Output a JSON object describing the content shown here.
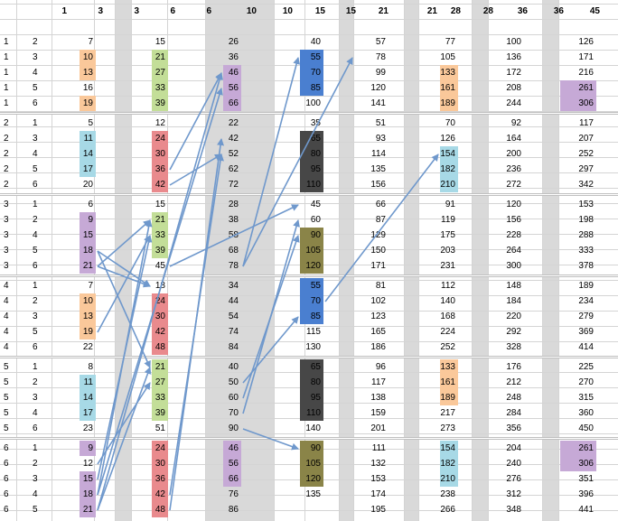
{
  "colors": {
    "orange": "#fac89a",
    "green": "#c3de98",
    "purple": "#c6a9d6",
    "teal": "#a7d9e6",
    "red": "#e98a8d",
    "blue": "#4a7fd0",
    "dark": "#474747",
    "olive": "#8a8448",
    "gray_band": "#d9d9d9",
    "arrow": "#6f98cc"
  },
  "header": [
    "1",
    "3",
    "3",
    "6",
    "6",
    "10",
    "10",
    "15",
    "15",
    "21",
    "21",
    "28",
    "28",
    "36",
    "36",
    "45"
  ],
  "rows": [
    {
      "a": "1",
      "b": "2",
      "c": [
        [
          "7",
          ""
        ],
        [
          "15",
          ""
        ],
        [
          "26",
          ""
        ],
        [
          "40",
          ""
        ],
        [
          "57",
          ""
        ],
        [
          "77",
          ""
        ],
        [
          "100",
          ""
        ],
        [
          "126",
          ""
        ]
      ]
    },
    {
      "a": "1",
      "b": "3",
      "c": [
        [
          "10",
          "orange"
        ],
        [
          "21",
          "green"
        ],
        [
          "36",
          ""
        ],
        [
          "55",
          "blue"
        ],
        [
          "78",
          ""
        ],
        [
          "105",
          ""
        ],
        [
          "136",
          ""
        ],
        [
          "171",
          ""
        ]
      ]
    },
    {
      "a": "1",
      "b": "4",
      "c": [
        [
          "13",
          "orange"
        ],
        [
          "27",
          "green"
        ],
        [
          "46",
          "purple"
        ],
        [
          "70",
          "blue"
        ],
        [
          "99",
          ""
        ],
        [
          "133",
          "orange"
        ],
        [
          "172",
          ""
        ],
        [
          "216",
          ""
        ]
      ]
    },
    {
      "a": "1",
      "b": "5",
      "c": [
        [
          "16",
          ""
        ],
        [
          "33",
          "green"
        ],
        [
          "56",
          "purple"
        ],
        [
          "85",
          "blue"
        ],
        [
          "120",
          ""
        ],
        [
          "161",
          "orange"
        ],
        [
          "208",
          ""
        ],
        [
          "261",
          "purple"
        ]
      ]
    },
    {
      "a": "1",
      "b": "6",
      "c": [
        [
          "19",
          "orange"
        ],
        [
          "39",
          "green"
        ],
        [
          "66",
          "purple"
        ],
        [
          "100",
          ""
        ],
        [
          "141",
          ""
        ],
        [
          "189",
          "orange"
        ],
        [
          "244",
          ""
        ],
        [
          "306",
          "purple"
        ]
      ]
    },
    {
      "a": "2",
      "b": "1",
      "c": [
        [
          "5",
          ""
        ],
        [
          "12",
          ""
        ],
        [
          "22",
          ""
        ],
        [
          "35",
          ""
        ],
        [
          "51",
          ""
        ],
        [
          "70",
          ""
        ],
        [
          "92",
          ""
        ],
        [
          "117",
          ""
        ]
      ]
    },
    {
      "a": "2",
      "b": "3",
      "c": [
        [
          "11",
          "teal"
        ],
        [
          "24",
          "red"
        ],
        [
          "42",
          ""
        ],
        [
          "65",
          "dark"
        ],
        [
          "93",
          ""
        ],
        [
          "126",
          ""
        ],
        [
          "164",
          ""
        ],
        [
          "207",
          ""
        ]
      ]
    },
    {
      "a": "2",
      "b": "4",
      "c": [
        [
          "14",
          "teal"
        ],
        [
          "30",
          "red"
        ],
        [
          "52",
          ""
        ],
        [
          "80",
          "dark"
        ],
        [
          "114",
          ""
        ],
        [
          "154",
          "teal"
        ],
        [
          "200",
          ""
        ],
        [
          "252",
          ""
        ]
      ]
    },
    {
      "a": "2",
      "b": "5",
      "c": [
        [
          "17",
          "teal"
        ],
        [
          "36",
          "red"
        ],
        [
          "62",
          ""
        ],
        [
          "95",
          "dark"
        ],
        [
          "135",
          ""
        ],
        [
          "182",
          "teal"
        ],
        [
          "236",
          ""
        ],
        [
          "297",
          ""
        ]
      ]
    },
    {
      "a": "2",
      "b": "6",
      "c": [
        [
          "20",
          ""
        ],
        [
          "42",
          "red"
        ],
        [
          "72",
          ""
        ],
        [
          "110",
          "dark"
        ],
        [
          "156",
          ""
        ],
        [
          "210",
          "teal"
        ],
        [
          "272",
          ""
        ],
        [
          "342",
          ""
        ]
      ]
    },
    {
      "a": "3",
      "b": "1",
      "c": [
        [
          "6",
          ""
        ],
        [
          "15",
          ""
        ],
        [
          "28",
          ""
        ],
        [
          "45",
          ""
        ],
        [
          "66",
          ""
        ],
        [
          "91",
          ""
        ],
        [
          "120",
          ""
        ],
        [
          "153",
          ""
        ]
      ]
    },
    {
      "a": "3",
      "b": "2",
      "c": [
        [
          "9",
          "purple"
        ],
        [
          "21",
          "green"
        ],
        [
          "38",
          ""
        ],
        [
          "60",
          ""
        ],
        [
          "87",
          ""
        ],
        [
          "119",
          ""
        ],
        [
          "156",
          ""
        ],
        [
          "198",
          ""
        ]
      ]
    },
    {
      "a": "3",
      "b": "4",
      "c": [
        [
          "15",
          "purple"
        ],
        [
          "33",
          "green"
        ],
        [
          "58",
          ""
        ],
        [
          "90",
          "olive"
        ],
        [
          "129",
          ""
        ],
        [
          "175",
          ""
        ],
        [
          "228",
          ""
        ],
        [
          "288",
          ""
        ]
      ]
    },
    {
      "a": "3",
      "b": "5",
      "c": [
        [
          "18",
          "purple"
        ],
        [
          "39",
          "green"
        ],
        [
          "68",
          ""
        ],
        [
          "105",
          "olive"
        ],
        [
          "150",
          ""
        ],
        [
          "203",
          ""
        ],
        [
          "264",
          ""
        ],
        [
          "333",
          ""
        ]
      ]
    },
    {
      "a": "3",
      "b": "6",
      "c": [
        [
          "21",
          "purple"
        ],
        [
          "45",
          ""
        ],
        [
          "78",
          ""
        ],
        [
          "120",
          "olive"
        ],
        [
          "171",
          ""
        ],
        [
          "231",
          ""
        ],
        [
          "300",
          ""
        ],
        [
          "378",
          ""
        ]
      ]
    },
    {
      "a": "4",
      "b": "1",
      "c": [
        [
          "7",
          ""
        ],
        [
          "18",
          ""
        ],
        [
          "34",
          ""
        ],
        [
          "55",
          "blue"
        ],
        [
          "81",
          ""
        ],
        [
          "112",
          ""
        ],
        [
          "148",
          ""
        ],
        [
          "189",
          ""
        ]
      ]
    },
    {
      "a": "4",
      "b": "2",
      "c": [
        [
          "10",
          "orange"
        ],
        [
          "24",
          "red"
        ],
        [
          "44",
          ""
        ],
        [
          "70",
          "blue"
        ],
        [
          "102",
          ""
        ],
        [
          "140",
          ""
        ],
        [
          "184",
          ""
        ],
        [
          "234",
          ""
        ]
      ]
    },
    {
      "a": "4",
      "b": "3",
      "c": [
        [
          "13",
          "orange"
        ],
        [
          "30",
          "red"
        ],
        [
          "54",
          ""
        ],
        [
          "85",
          "blue"
        ],
        [
          "123",
          ""
        ],
        [
          "168",
          ""
        ],
        [
          "220",
          ""
        ],
        [
          "279",
          ""
        ]
      ]
    },
    {
      "a": "4",
      "b": "5",
      "c": [
        [
          "19",
          "orange"
        ],
        [
          "42",
          "red"
        ],
        [
          "74",
          ""
        ],
        [
          "115",
          ""
        ],
        [
          "165",
          ""
        ],
        [
          "224",
          ""
        ],
        [
          "292",
          ""
        ],
        [
          "369",
          ""
        ]
      ]
    },
    {
      "a": "4",
      "b": "6",
      "c": [
        [
          "22",
          ""
        ],
        [
          "48",
          "red"
        ],
        [
          "84",
          ""
        ],
        [
          "130",
          ""
        ],
        [
          "186",
          ""
        ],
        [
          "252",
          ""
        ],
        [
          "328",
          ""
        ],
        [
          "414",
          ""
        ]
      ]
    },
    {
      "a": "5",
      "b": "1",
      "c": [
        [
          "8",
          ""
        ],
        [
          "21",
          "green"
        ],
        [
          "40",
          ""
        ],
        [
          "65",
          "dark"
        ],
        [
          "96",
          ""
        ],
        [
          "133",
          "orange"
        ],
        [
          "176",
          ""
        ],
        [
          "225",
          ""
        ]
      ]
    },
    {
      "a": "5",
      "b": "2",
      "c": [
        [
          "11",
          "teal"
        ],
        [
          "27",
          "green"
        ],
        [
          "50",
          ""
        ],
        [
          "80",
          "dark"
        ],
        [
          "117",
          ""
        ],
        [
          "161",
          "orange"
        ],
        [
          "212",
          ""
        ],
        [
          "270",
          ""
        ]
      ]
    },
    {
      "a": "5",
      "b": "3",
      "c": [
        [
          "14",
          "teal"
        ],
        [
          "33",
          "green"
        ],
        [
          "60",
          ""
        ],
        [
          "95",
          "dark"
        ],
        [
          "138",
          ""
        ],
        [
          "189",
          "orange"
        ],
        [
          "248",
          ""
        ],
        [
          "315",
          ""
        ]
      ]
    },
    {
      "a": "5",
      "b": "4",
      "c": [
        [
          "17",
          "teal"
        ],
        [
          "39",
          "green"
        ],
        [
          "70",
          ""
        ],
        [
          "110",
          "dark"
        ],
        [
          "159",
          ""
        ],
        [
          "217",
          ""
        ],
        [
          "284",
          ""
        ],
        [
          "360",
          ""
        ]
      ]
    },
    {
      "a": "5",
      "b": "6",
      "c": [
        [
          "23",
          ""
        ],
        [
          "51",
          ""
        ],
        [
          "90",
          ""
        ],
        [
          "140",
          ""
        ],
        [
          "201",
          ""
        ],
        [
          "273",
          ""
        ],
        [
          "356",
          ""
        ],
        [
          "450",
          ""
        ]
      ]
    },
    {
      "a": "6",
      "b": "1",
      "c": [
        [
          "9",
          "purple"
        ],
        [
          "24",
          "red"
        ],
        [
          "46",
          "purple"
        ],
        [
          "90",
          "olive"
        ],
        [
          "111",
          ""
        ],
        [
          "154",
          "teal"
        ],
        [
          "204",
          ""
        ],
        [
          "261",
          "purple"
        ]
      ]
    },
    {
      "a": "6",
      "b": "2",
      "c": [
        [
          "12",
          ""
        ],
        [
          "30",
          "red"
        ],
        [
          "56",
          "purple"
        ],
        [
          "105",
          "olive"
        ],
        [
          "132",
          ""
        ],
        [
          "182",
          "teal"
        ],
        [
          "240",
          ""
        ],
        [
          "306",
          "purple"
        ]
      ]
    },
    {
      "a": "6",
      "b": "3",
      "c": [
        [
          "15",
          "purple"
        ],
        [
          "36",
          "red"
        ],
        [
          "66",
          "purple"
        ],
        [
          "120",
          "olive"
        ],
        [
          "153",
          ""
        ],
        [
          "210",
          "teal"
        ],
        [
          "276",
          ""
        ],
        [
          "351",
          ""
        ]
      ]
    },
    {
      "a": "6",
      "b": "4",
      "c": [
        [
          "18",
          "purple"
        ],
        [
          "42",
          "red"
        ],
        [
          "76",
          ""
        ],
        [
          "135",
          ""
        ],
        [
          "174",
          ""
        ],
        [
          "238",
          ""
        ],
        [
          "312",
          ""
        ],
        [
          "396",
          ""
        ]
      ]
    },
    {
      "a": "6",
      "b": "5",
      "c": [
        [
          "21",
          "purple"
        ],
        [
          "48",
          "red"
        ],
        [
          "86",
          ""
        ],
        [
          "",
          ""
        ],
        [
          "195",
          ""
        ],
        [
          "266",
          ""
        ],
        [
          "348",
          ""
        ],
        [
          "441",
          ""
        ]
      ]
    }
  ],
  "arrows": [
    [
      0,
      29,
      2,
      2
    ],
    [
      0,
      28,
      2,
      3
    ],
    [
      0,
      28,
      1,
      11
    ],
    [
      0,
      27,
      1,
      12
    ],
    [
      0,
      29,
      1,
      20
    ],
    [
      0,
      26,
      1,
      21
    ],
    [
      0,
      14,
      1,
      11
    ],
    [
      0,
      14,
      1,
      15
    ],
    [
      0,
      13,
      1,
      15
    ],
    [
      0,
      13,
      1,
      20
    ],
    [
      0,
      18,
      1,
      12
    ],
    [
      1,
      8,
      2,
      2
    ],
    [
      1,
      9,
      2,
      7
    ],
    [
      1,
      29,
      2,
      6
    ],
    [
      1,
      28,
      2,
      7
    ],
    [
      1,
      14,
      3,
      10
    ],
    [
      2,
      14,
      3,
      1
    ],
    [
      2,
      14,
      4,
      1
    ],
    [
      2,
      23,
      3,
      11
    ],
    [
      2,
      22,
      3,
      12
    ],
    [
      2,
      21,
      3,
      17
    ],
    [
      2,
      24,
      3,
      25
    ],
    [
      3,
      16,
      5,
      7
    ]
  ],
  "small_marks": [
    "0",
    "0",
    "0",
    "0",
    "0",
    "0",
    "0"
  ]
}
